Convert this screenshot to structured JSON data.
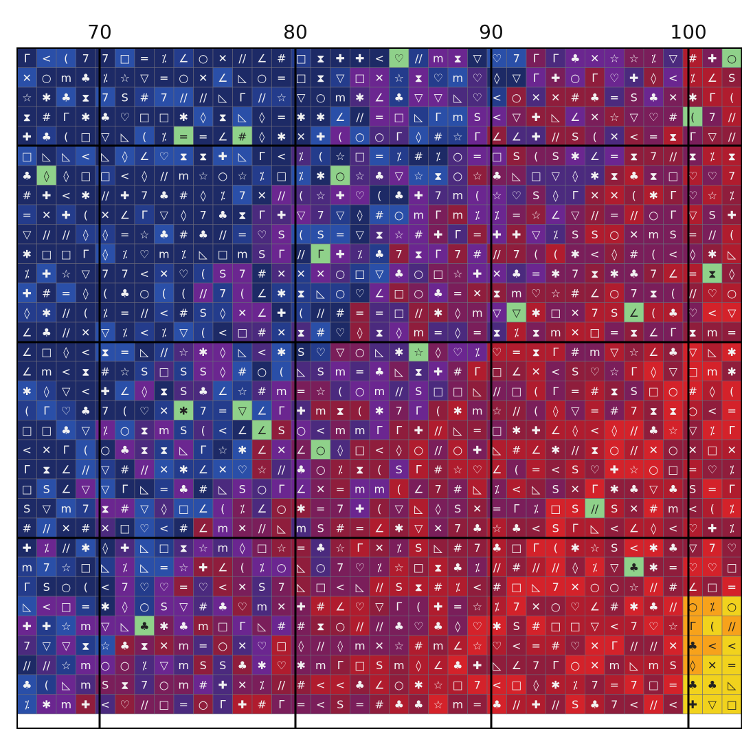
{
  "column_labels": [
    "70",
    "80",
    "90",
    "100"
  ],
  "chart_data": {
    "type": "heatmap",
    "description_symbols": [
      "diamond",
      "asterisk",
      "square",
      "less-than",
      "seven",
      "double-slash",
      "heart",
      "circle",
      "equals",
      "cross",
      "triangle-down",
      "right-triangle",
      "m",
      "star",
      "corner",
      "club",
      "hourglass",
      "crescent",
      "check",
      "hash",
      "s",
      "percent",
      "x"
    ],
    "visible_start_column": 66,
    "major_grid_every": 10,
    "major_grid_rows_every": 10,
    "color_scale": [
      "#1d2a66",
      "#243c8c",
      "#2a4fa8",
      "#4b2a7e",
      "#6b2690",
      "#7a1e5a",
      "#8f1d3c",
      "#b01c2e",
      "#d4222a",
      "#f1d21d",
      "#f7a21b",
      "#8fd18a"
    ]
  }
}
